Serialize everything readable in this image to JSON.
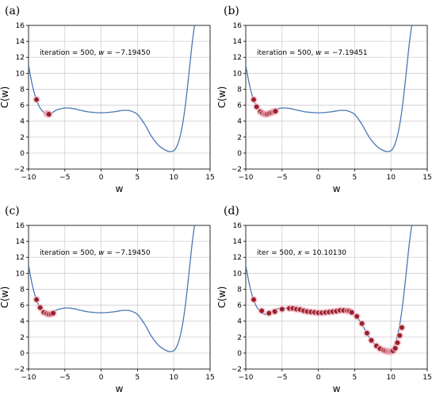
{
  "chart_data": [
    {
      "type": "line",
      "panel_label": "(a)",
      "xlabel": "w",
      "ylabel": "C(w)",
      "xlim": [
        -10,
        15
      ],
      "ylim": [
        -2,
        16
      ],
      "xticks": [
        "−10",
        "−5",
        "0",
        "5",
        "10",
        "15"
      ],
      "yticks": [
        "−2",
        "0",
        "2",
        "4",
        "6",
        "8",
        "10",
        "12",
        "14",
        "16"
      ],
      "grid": true,
      "annotation_prefix": "iteration = 500, ",
      "annotation_var": "w",
      "annotation_value": " = −7.19450",
      "series": [
        {
          "kind": "curve",
          "x": [
            -10,
            -9.5,
            -9,
            -8.5,
            -8,
            -7.5,
            -7.2,
            -7,
            -6.5,
            -6,
            -5,
            -4,
            -3,
            -2,
            -1,
            0,
            1,
            2,
            3,
            4,
            5,
            6,
            7,
            8,
            9,
            9.5,
            10,
            10.5,
            11,
            11.5,
            12,
            12.5,
            13
          ],
          "y": [
            11,
            8.6,
            6.9,
            5.8,
            5.2,
            4.9,
            4.85,
            4.9,
            5.2,
            5.45,
            5.65,
            5.6,
            5.4,
            5.2,
            5.1,
            5.05,
            5.1,
            5.2,
            5.35,
            5.3,
            4.85,
            3.6,
            2.0,
            0.9,
            0.3,
            0.2,
            0.3,
            1.0,
            2.6,
            5.3,
            9.2,
            13.5,
            17
          ]
        },
        {
          "kind": "points",
          "x": [
            -8.9,
            -7.5,
            -7.35,
            -7.25,
            -7.19
          ],
          "y": [
            6.7,
            4.95,
            4.9,
            4.88,
            4.86
          ]
        }
      ]
    },
    {
      "type": "line",
      "panel_label": "(b)",
      "xlabel": "w",
      "ylabel": "C(w)",
      "xlim": [
        -10,
        15
      ],
      "ylim": [
        -2,
        16
      ],
      "xticks": [
        "−10",
        "−5",
        "0",
        "5",
        "10",
        "15"
      ],
      "yticks": [
        "−2",
        "0",
        "2",
        "4",
        "6",
        "8",
        "10",
        "12",
        "14",
        "16"
      ],
      "grid": true,
      "annotation_prefix": "iteration = 500, ",
      "annotation_var": "w",
      "annotation_value": " = −7.19451",
      "series": [
        {
          "kind": "curve",
          "x": [
            -10,
            -9.5,
            -9,
            -8.5,
            -8,
            -7.5,
            -7.2,
            -7,
            -6.5,
            -6,
            -5,
            -4,
            -3,
            -2,
            -1,
            0,
            1,
            2,
            3,
            4,
            5,
            6,
            7,
            8,
            9,
            9.5,
            10,
            10.5,
            11,
            11.5,
            12,
            12.5,
            13
          ],
          "y": [
            11,
            8.6,
            6.9,
            5.8,
            5.2,
            4.9,
            4.85,
            4.9,
            5.2,
            5.45,
            5.65,
            5.6,
            5.4,
            5.2,
            5.1,
            5.05,
            5.1,
            5.2,
            5.35,
            5.3,
            4.85,
            3.6,
            2.0,
            0.9,
            0.3,
            0.2,
            0.3,
            1.0,
            2.6,
            5.3,
            9.2,
            13.5,
            17
          ]
        },
        {
          "kind": "points",
          "x": [
            -8.9,
            -8.5,
            -8.0,
            -7.7,
            -7.4,
            -7.2,
            -7.0,
            -6.7,
            -6.4,
            -6.1,
            -5.9
          ],
          "y": [
            6.7,
            5.8,
            5.2,
            5.0,
            4.9,
            4.86,
            4.9,
            5.0,
            5.1,
            5.2,
            5.25
          ]
        }
      ]
    },
    {
      "type": "line",
      "panel_label": "(c)",
      "xlabel": "w",
      "ylabel": "C(w)",
      "xlim": [
        -10,
        15
      ],
      "ylim": [
        -2,
        16
      ],
      "xticks": [
        "−10",
        "−5",
        "0",
        "5",
        "10",
        "15"
      ],
      "yticks": [
        "−2",
        "0",
        "2",
        "4",
        "6",
        "8",
        "10",
        "12",
        "14",
        "16"
      ],
      "grid": true,
      "annotation_prefix": "iteration = 500, ",
      "annotation_var": "w",
      "annotation_value": " = −7.19450",
      "series": [
        {
          "kind": "curve",
          "x": [
            -10,
            -9.5,
            -9,
            -8.5,
            -8,
            -7.5,
            -7.2,
            -7,
            -6.5,
            -6,
            -5,
            -4,
            -3,
            -2,
            -1,
            0,
            1,
            2,
            3,
            4,
            5,
            6,
            7,
            8,
            9,
            9.5,
            10,
            10.5,
            11,
            11.5,
            12,
            12.5,
            13
          ],
          "y": [
            11,
            8.6,
            6.9,
            5.8,
            5.2,
            4.9,
            4.85,
            4.9,
            5.2,
            5.45,
            5.65,
            5.6,
            5.4,
            5.2,
            5.1,
            5.05,
            5.1,
            5.2,
            5.35,
            5.3,
            4.85,
            3.6,
            2.0,
            0.9,
            0.3,
            0.2,
            0.3,
            1.0,
            2.6,
            5.3,
            9.2,
            13.5,
            17
          ]
        },
        {
          "kind": "points",
          "x": [
            -8.9,
            -8.4,
            -7.9,
            -7.5,
            -7.2,
            -6.9,
            -6.6
          ],
          "y": [
            6.7,
            5.7,
            5.1,
            4.95,
            4.86,
            4.9,
            5.0
          ]
        }
      ]
    },
    {
      "type": "line",
      "panel_label": "(d)",
      "xlabel": "w",
      "ylabel": "C(w)",
      "xlim": [
        -10,
        15
      ],
      "ylim": [
        -2,
        16
      ],
      "xticks": [
        "−10",
        "−5",
        "0",
        "5",
        "10",
        "15"
      ],
      "yticks": [
        "−2",
        "0",
        "2",
        "4",
        "6",
        "8",
        "10",
        "12",
        "14",
        "16"
      ],
      "grid": true,
      "annotation_prefix": "iter = 500, ",
      "annotation_var": "x",
      "annotation_value": " = 10.10130",
      "series": [
        {
          "kind": "curve",
          "x": [
            -10,
            -9.5,
            -9,
            -8.5,
            -8,
            -7.5,
            -7.2,
            -7,
            -6.5,
            -6,
            -5,
            -4,
            -3,
            -2,
            -1,
            0,
            1,
            2,
            3,
            4,
            5,
            6,
            7,
            8,
            9,
            9.5,
            10,
            10.5,
            11,
            11.5,
            12,
            12.5,
            13
          ],
          "y": [
            11,
            8.6,
            6.9,
            5.8,
            5.2,
            4.9,
            4.85,
            4.9,
            5.2,
            5.45,
            5.65,
            5.6,
            5.4,
            5.2,
            5.1,
            5.05,
            5.1,
            5.2,
            5.35,
            5.3,
            4.85,
            3.6,
            2.0,
            0.9,
            0.3,
            0.2,
            0.3,
            1.0,
            2.6,
            5.3,
            9.2,
            13.5,
            17
          ]
        },
        {
          "kind": "points",
          "x": [
            -8.9,
            -7.8,
            -6.8,
            -6.0,
            -5.0,
            -4.0,
            -3.5,
            -3.0,
            -2.5,
            -2.0,
            -1.5,
            -1.0,
            -0.5,
            0.0,
            0.5,
            1.0,
            1.5,
            2.0,
            2.5,
            3.0,
            3.5,
            4.0,
            4.3,
            4.6,
            5.3,
            6.0,
            6.7,
            7.3,
            8.0,
            8.5,
            9.0,
            9.3,
            9.6,
            9.8,
            10.0,
            10.1,
            10.3,
            10.6,
            10.9,
            11.2,
            11.5
          ],
          "y": [
            6.7,
            5.3,
            5.0,
            5.2,
            5.5,
            5.6,
            5.6,
            5.5,
            5.45,
            5.3,
            5.2,
            5.15,
            5.1,
            5.05,
            5.05,
            5.1,
            5.15,
            5.2,
            5.25,
            5.35,
            5.35,
            5.3,
            5.25,
            5.1,
            4.6,
            3.7,
            2.5,
            1.6,
            0.9,
            0.55,
            0.35,
            0.25,
            0.2,
            0.2,
            0.2,
            0.22,
            0.3,
            0.6,
            1.3,
            2.2,
            3.2
          ]
        }
      ]
    }
  ]
}
